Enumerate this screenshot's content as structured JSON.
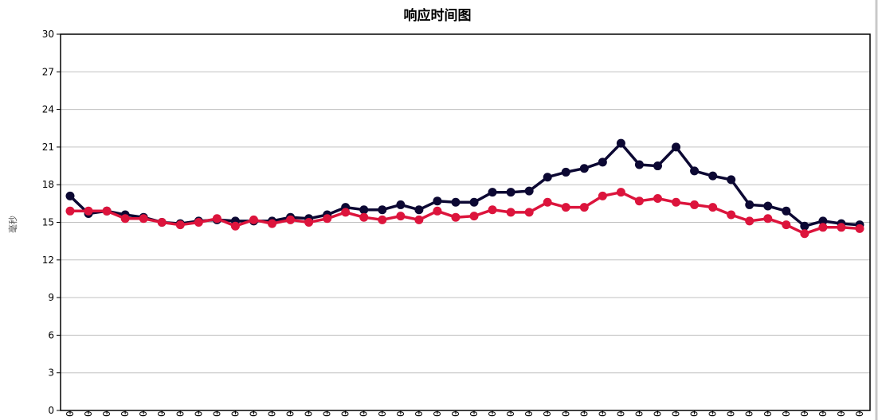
{
  "chart_data": {
    "type": "line",
    "title": "响应时间图",
    "xlabel": "",
    "ylabel": "毫秒",
    "ylim": [
      0,
      30
    ],
    "yticks": [
      0,
      3,
      6,
      9,
      12,
      15,
      18,
      21,
      24,
      27,
      30
    ],
    "grid": true,
    "legend": "none",
    "x_tick_labels": [
      "0",
      "0",
      "0",
      "0",
      "0",
      "0",
      "0",
      "0",
      "0",
      "0",
      "0",
      "0",
      "0",
      "0",
      "0",
      "0",
      "0",
      "0",
      "0",
      "0",
      "0",
      "0",
      "0",
      "0",
      "0",
      "0",
      "0",
      "0",
      "0",
      "0",
      "0",
      "0",
      "0",
      "0",
      "0",
      "0",
      "0",
      "0",
      "0",
      "0",
      "0",
      "0",
      "0",
      "0",
      "0",
      "0"
    ],
    "series": [
      {
        "color": "#0c0833",
        "values": [
          17.1,
          15.7,
          15.9,
          15.6,
          15.4,
          15.0,
          14.9,
          15.1,
          15.2,
          15.1,
          15.1,
          15.1,
          15.4,
          15.3,
          15.6,
          16.2,
          16.0,
          16.0,
          16.4,
          16.0,
          16.7,
          16.6,
          16.6,
          17.4,
          17.4,
          17.5,
          18.6,
          19.0,
          19.3,
          19.8,
          21.3,
          19.6,
          19.5,
          21.0,
          19.1,
          18.7,
          18.4,
          16.4,
          16.3,
          15.9,
          14.7,
          15.1,
          14.9,
          14.8
        ]
      },
      {
        "color": "#dc143c",
        "values": [
          15.9,
          15.9,
          15.9,
          15.3,
          15.3,
          15.0,
          14.8,
          15.0,
          15.3,
          14.7,
          15.2,
          14.9,
          15.2,
          15.0,
          15.3,
          15.8,
          15.4,
          15.2,
          15.5,
          15.2,
          15.9,
          15.4,
          15.5,
          16.0,
          15.8,
          15.8,
          16.6,
          16.2,
          16.2,
          17.1,
          17.4,
          16.7,
          16.9,
          16.6,
          16.4,
          16.2,
          15.6,
          15.1,
          15.3,
          14.8,
          14.1,
          14.6,
          14.6,
          14.5
        ]
      }
    ]
  }
}
